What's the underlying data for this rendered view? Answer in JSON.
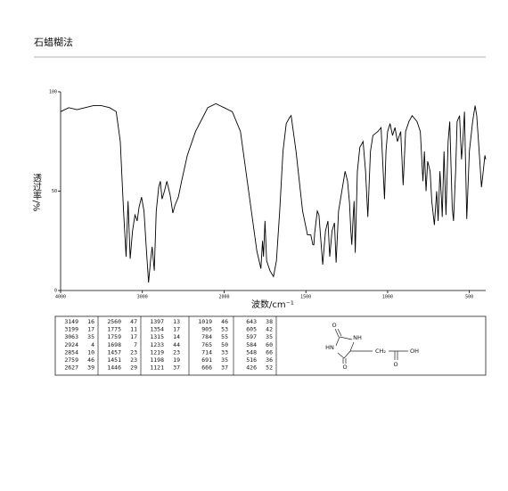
{
  "header": {
    "title": "石蜡糊法"
  },
  "chart_data": {
    "type": "line",
    "xlabel": "波数/cm⁻¹",
    "ylabel": "透过率/%",
    "color": "#000000",
    "xlim": [
      4000,
      400
    ],
    "xticks": [
      4000,
      3000,
      2000,
      1500,
      1000,
      500
    ],
    "ylim": [
      0,
      100
    ],
    "yticks": [
      0,
      50,
      100
    ],
    "x": [
      4000,
      3900,
      3800,
      3700,
      3600,
      3500,
      3400,
      3320,
      3270,
      3230,
      3199,
      3175,
      3149,
      3120,
      3090,
      3063,
      3040,
      3010,
      2980,
      2950,
      2924,
      2900,
      2880,
      2854,
      2830,
      2800,
      2780,
      2759,
      2730,
      2700,
      2660,
      2627,
      2600,
      2560,
      2520,
      2450,
      2350,
      2250,
      2200,
      2100,
      2050,
      2000,
      1950,
      1900,
      1850,
      1800,
      1775,
      1765,
      1759,
      1750,
      1740,
      1720,
      1698,
      1680,
      1660,
      1640,
      1620,
      1600,
      1590,
      1560,
      1520,
      1490,
      1470,
      1457,
      1451,
      1446,
      1430,
      1420,
      1397,
      1380,
      1365,
      1354,
      1340,
      1325,
      1315,
      1300,
      1280,
      1260,
      1245,
      1233,
      1225,
      1219,
      1212,
      1205,
      1198,
      1185,
      1170,
      1150,
      1135,
      1121,
      1105,
      1090,
      1060,
      1040,
      1019,
      1010,
      1000,
      985,
      970,
      955,
      940,
      920,
      905,
      890,
      870,
      850,
      820,
      800,
      784,
      775,
      765,
      755,
      740,
      730,
      714,
      700,
      691,
      680,
      670,
      666,
      655,
      643,
      630,
      620,
      605,
      597,
      584,
      575,
      560,
      548,
      540,
      530,
      516,
      500,
      480,
      465,
      455,
      440,
      426,
      415,
      405,
      400
    ],
    "values": [
      90,
      92,
      91,
      92,
      93,
      93,
      92,
      90,
      75,
      40,
      17,
      45,
      16,
      30,
      38,
      35,
      42,
      47,
      40,
      20,
      4,
      15,
      22,
      10,
      40,
      52,
      55,
      46,
      50,
      55,
      48,
      39,
      43,
      47,
      55,
      68,
      80,
      88,
      92,
      94,
      93,
      92,
      90,
      80,
      50,
      20,
      11,
      25,
      17,
      35,
      15,
      10,
      7,
      15,
      40,
      70,
      84,
      87,
      88,
      70,
      40,
      28,
      28,
      23,
      23,
      29,
      40,
      38,
      13,
      30,
      35,
      17,
      30,
      34,
      14,
      40,
      50,
      60,
      55,
      44,
      30,
      23,
      35,
      45,
      19,
      60,
      72,
      75,
      60,
      37,
      70,
      78,
      80,
      82,
      46,
      70,
      80,
      84,
      78,
      82,
      75,
      80,
      53,
      80,
      85,
      88,
      85,
      80,
      55,
      70,
      50,
      65,
      60,
      45,
      33,
      50,
      35,
      60,
      45,
      37,
      70,
      38,
      75,
      85,
      42,
      35,
      60,
      85,
      88,
      66,
      75,
      90,
      36,
      70,
      85,
      93,
      88,
      70,
      52,
      60,
      68,
      66
    ]
  },
  "peak_table": {
    "rows": [
      [
        3149,
        16,
        2560,
        47,
        1397,
        13,
        1019,
        46,
        643,
        38
      ],
      [
        3199,
        17,
        1775,
        11,
        1354,
        17,
        905,
        53,
        605,
        42
      ],
      [
        3063,
        35,
        1759,
        17,
        1315,
        14,
        784,
        55,
        597,
        35
      ],
      [
        2924,
        4,
        1698,
        7,
        1233,
        44,
        765,
        50,
        584,
        60
      ],
      [
        2854,
        10,
        1457,
        23,
        1219,
        23,
        714,
        33,
        548,
        66
      ],
      [
        2759,
        46,
        1451,
        23,
        1198,
        19,
        691,
        35,
        516,
        36
      ],
      [
        2627,
        39,
        1446,
        29,
        1121,
        37,
        666,
        37,
        426,
        52
      ]
    ]
  },
  "structure": {
    "labels": [
      "O",
      "NH",
      "HN",
      "O",
      "CH₂",
      "C",
      "OH",
      "O"
    ]
  }
}
